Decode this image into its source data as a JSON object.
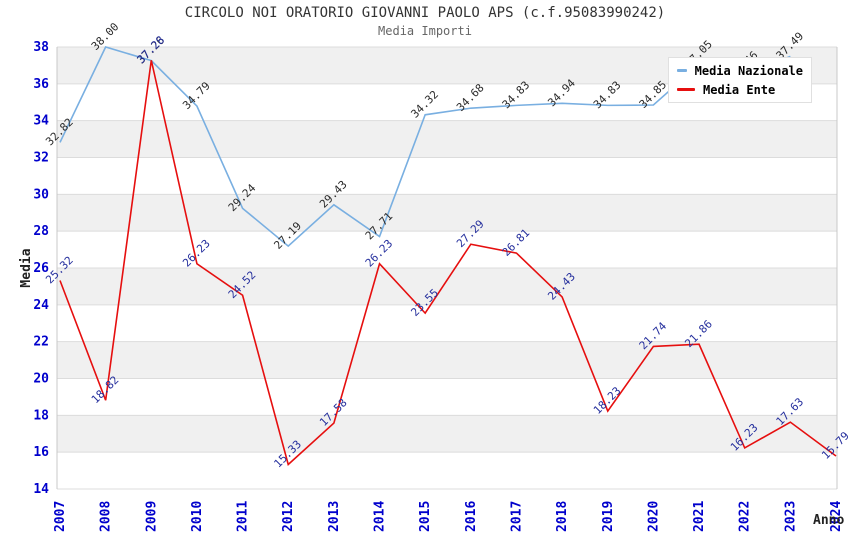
{
  "title": "CIRCOLO NOI ORATORIO GIOVANNI PAOLO APS (c.f.95083990242)",
  "subtitle": "Media Importi",
  "legend": {
    "items": [
      {
        "label": "Media Nazionale",
        "color": "#79afe1"
      },
      {
        "label": "Media Ente",
        "color": "#e60f0f"
      }
    ]
  },
  "colors": {
    "tick": "#0000cc",
    "band": "#f0f0f0",
    "grid": "#dcdcdc",
    "border": "#c8c8c8"
  },
  "chart_data": {
    "type": "line",
    "x": [
      2007,
      2008,
      2009,
      2010,
      2011,
      2012,
      2013,
      2014,
      2015,
      2016,
      2017,
      2018,
      2019,
      2020,
      2021,
      2022,
      2023,
      2024
    ],
    "xlabel": "Anno",
    "ylabel": "Media",
    "ylim": [
      14,
      38
    ],
    "ytick_step": 2,
    "grid": "horizontal-bands",
    "legend_position": "top-right",
    "series": [
      {
        "name": "Media Nazionale",
        "color": "#79afe1",
        "label_color": "#2b2b2b",
        "values": [
          32.82,
          38.0,
          37.26,
          34.79,
          29.24,
          27.19,
          29.43,
          27.71,
          34.32,
          34.68,
          34.83,
          34.94,
          34.83,
          34.85,
          37.05,
          36.46,
          37.49,
          null
        ]
      },
      {
        "name": "Media Ente",
        "color": "#e60f0f",
        "label_color": "#252f9d",
        "values": [
          25.32,
          18.82,
          37.28,
          26.23,
          24.52,
          15.33,
          17.58,
          26.23,
          23.55,
          27.29,
          26.81,
          24.43,
          18.23,
          21.74,
          21.86,
          16.23,
          17.63,
          15.79
        ]
      }
    ]
  }
}
